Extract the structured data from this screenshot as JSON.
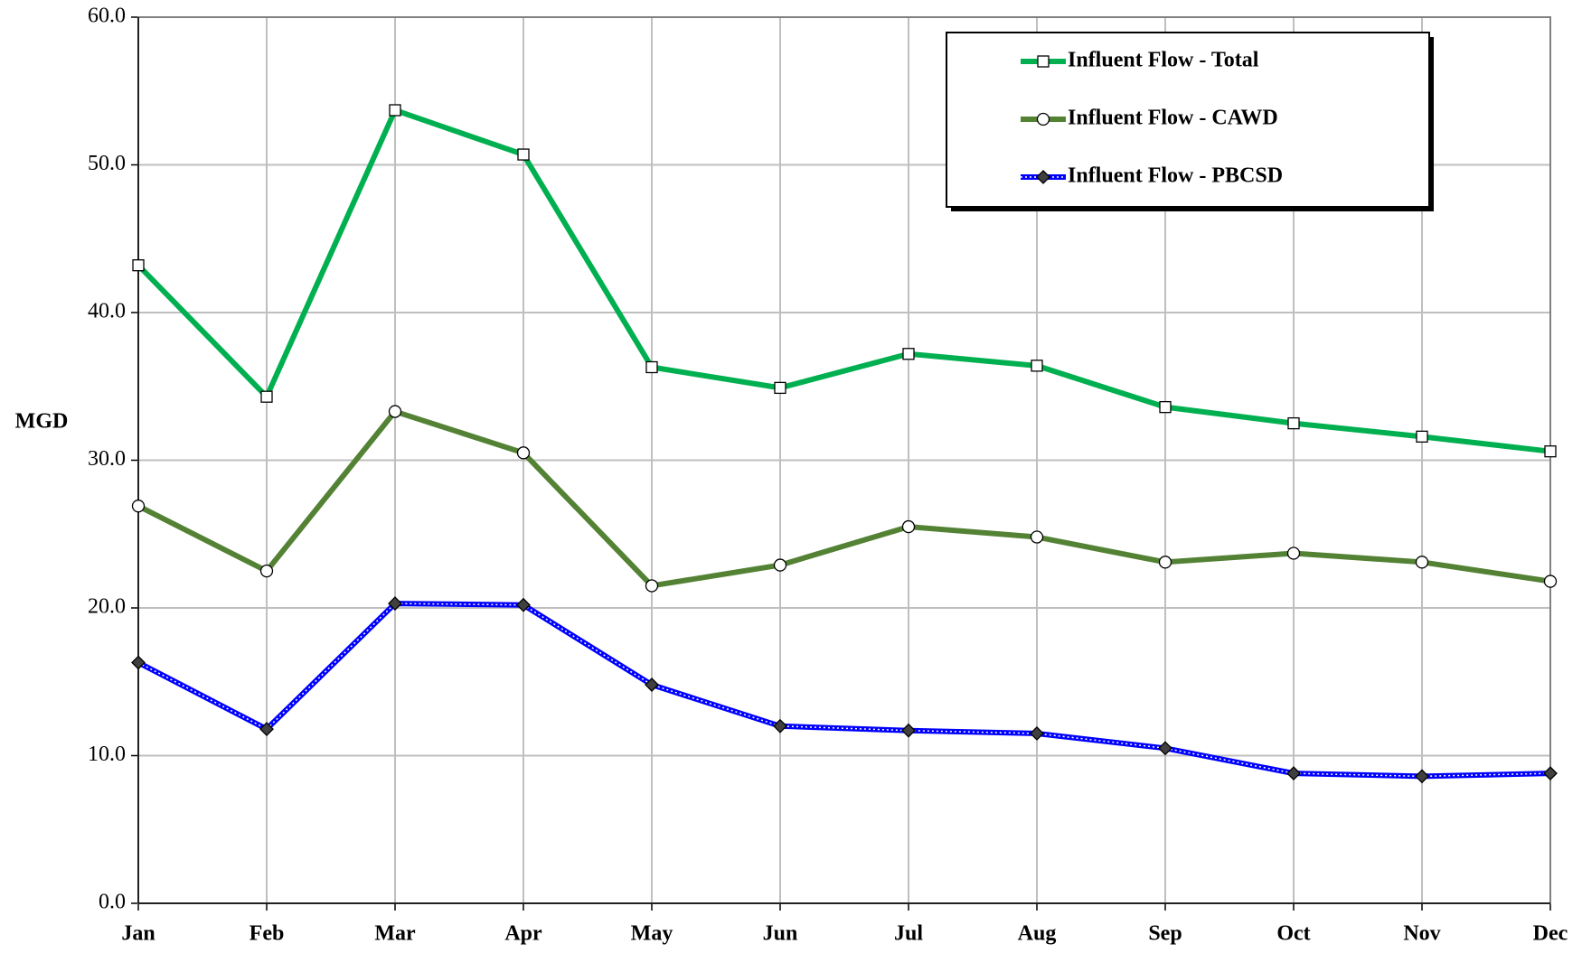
{
  "chart_data": {
    "type": "line",
    "categories": [
      "Jan",
      "Feb",
      "Mar",
      "Apr",
      "May",
      "Jun",
      "Jul",
      "Aug",
      "Sep",
      "Oct",
      "Nov",
      "Dec"
    ],
    "ylabel": "MGD",
    "ylim": [
      0,
      60
    ],
    "yticks": [
      {
        "value": 0,
        "label": "0.0"
      },
      {
        "value": 10,
        "label": "10.0"
      },
      {
        "value": 20,
        "label": "20.0"
      },
      {
        "value": 30,
        "label": "30.0"
      },
      {
        "value": 40,
        "label": "40.0"
      },
      {
        "value": 50,
        "label": "50.0"
      },
      {
        "value": 60,
        "label": "60.0"
      }
    ],
    "grid": true,
    "legend": "upper right",
    "series": [
      {
        "name": "Influent Flow - Total",
        "color": "#00b050",
        "marker": "square",
        "values": [
          43.2,
          34.3,
          53.7,
          50.7,
          36.3,
          34.9,
          37.2,
          36.4,
          33.6,
          32.5,
          31.6,
          30.6
        ]
      },
      {
        "name": "Influent Flow - CAWD",
        "color": "#548235",
        "marker": "circle",
        "values": [
          26.9,
          22.5,
          33.3,
          30.5,
          21.5,
          22.9,
          25.5,
          24.8,
          23.1,
          23.7,
          23.1,
          21.8
        ]
      },
      {
        "name": "Influent Flow - PBCSD",
        "color": "#0000ff",
        "marker": "diamond",
        "values": [
          16.3,
          11.8,
          20.3,
          20.2,
          14.8,
          12.0,
          11.7,
          11.5,
          10.5,
          8.8,
          8.6,
          8.8
        ]
      }
    ]
  }
}
